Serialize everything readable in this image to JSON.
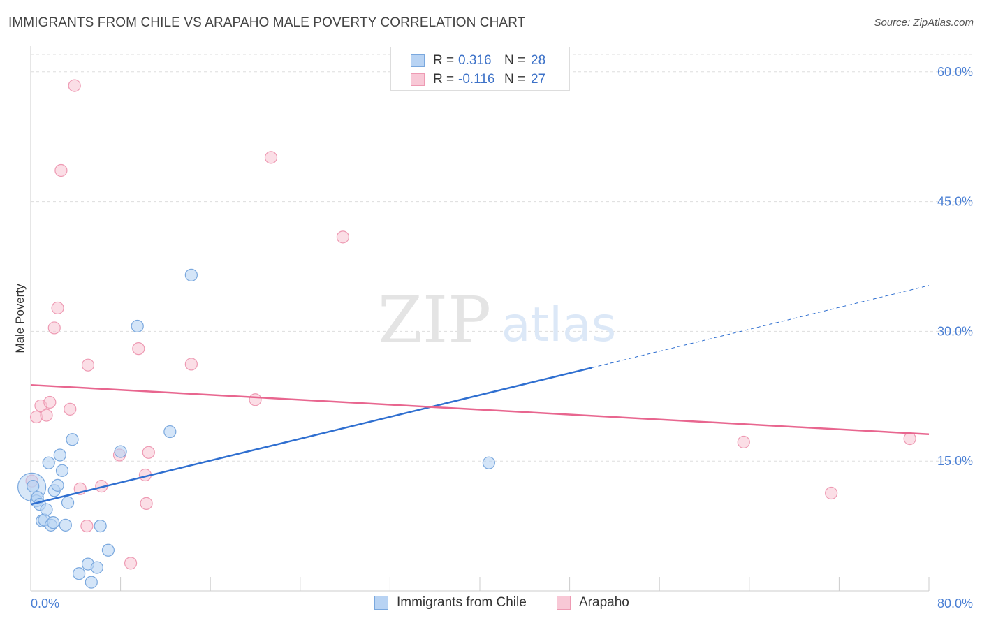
{
  "header": {
    "title": "IMMIGRANTS FROM CHILE VS ARAPAHO MALE POVERTY CORRELATION CHART",
    "source": "Source: ZipAtlas.com"
  },
  "watermark": {
    "zip": "ZIP",
    "atlas": "atlas"
  },
  "legend_top": {
    "rows": [
      {
        "r_label": "R =",
        "r_value": "0.316",
        "n_label": "N =",
        "n_value": "28"
      },
      {
        "r_label": "R =",
        "r_value": "-0.116",
        "n_label": "N =",
        "n_value": "27"
      }
    ]
  },
  "legend_bottom": {
    "items": [
      {
        "label": "Immigrants from Chile"
      },
      {
        "label": "Arapaho"
      }
    ]
  },
  "colors": {
    "chile_fill": "#b8d3f3",
    "chile_stroke": "#7aa8de",
    "chile_line": "#2f6fd0",
    "arapaho_fill": "#f8c8d6",
    "arapaho_stroke": "#ee9ab3",
    "arapaho_line": "#e8668f",
    "grid": "#dddddd",
    "tick_text": "#4a7fd4"
  },
  "chart_data": {
    "type": "scatter",
    "title": "IMMIGRANTS FROM CHILE VS ARAPAHO MALE POVERTY CORRELATION CHART",
    "xlabel": "",
    "ylabel": "Male Poverty",
    "xlim": [
      0,
      80
    ],
    "ylim": [
      0,
      62
    ],
    "x_tick_labels": [
      "0.0%",
      "80.0%"
    ],
    "y_ticks": [
      15,
      30,
      45,
      60
    ],
    "y_tick_labels": [
      "15.0%",
      "30.0%",
      "45.0%",
      "60.0%"
    ],
    "grid": true,
    "legend_position": "top-center",
    "series": [
      {
        "name": "Immigrants from Chile",
        "R": 0.316,
        "N": 28,
        "points": [
          [
            0.2,
            12.1
          ],
          [
            0.5,
            10.4
          ],
          [
            0.6,
            10.8
          ],
          [
            0.8,
            10.0
          ],
          [
            1.0,
            8.1
          ],
          [
            1.2,
            8.2
          ],
          [
            1.4,
            9.4
          ],
          [
            1.6,
            14.8
          ],
          [
            1.8,
            7.6
          ],
          [
            2.0,
            7.9
          ],
          [
            2.1,
            11.6
          ],
          [
            2.4,
            12.2
          ],
          [
            2.6,
            15.7
          ],
          [
            2.8,
            13.9
          ],
          [
            3.1,
            7.6
          ],
          [
            3.3,
            10.2
          ],
          [
            3.7,
            17.5
          ],
          [
            4.3,
            2.0
          ],
          [
            5.1,
            3.1
          ],
          [
            5.4,
            1.0
          ],
          [
            5.9,
            2.7
          ],
          [
            6.2,
            7.5
          ],
          [
            6.9,
            4.7
          ],
          [
            8.0,
            16.1
          ],
          [
            9.5,
            30.6
          ],
          [
            12.4,
            18.4
          ],
          [
            14.3,
            36.5
          ],
          [
            40.8,
            14.8
          ]
        ],
        "trend": {
          "x0": 0,
          "y0": 10.0,
          "x1": 50,
          "y1": 25.8,
          "dashed_to_x": 80,
          "dashed_to_y": 35.3
        }
      },
      {
        "name": "Arapaho",
        "R": -0.116,
        "N": 27,
        "points": [
          [
            0.1,
            12.7
          ],
          [
            0.5,
            20.1
          ],
          [
            0.9,
            21.4
          ],
          [
            1.4,
            20.3
          ],
          [
            1.7,
            21.8
          ],
          [
            2.1,
            30.4
          ],
          [
            2.4,
            32.7
          ],
          [
            2.7,
            48.6
          ],
          [
            3.5,
            21.0
          ],
          [
            3.9,
            58.4
          ],
          [
            4.4,
            11.8
          ],
          [
            5.0,
            7.5
          ],
          [
            5.1,
            26.1
          ],
          [
            6.3,
            12.1
          ],
          [
            7.9,
            15.7
          ],
          [
            8.9,
            3.2
          ],
          [
            9.6,
            28.0
          ],
          [
            10.2,
            13.4
          ],
          [
            10.3,
            10.1
          ],
          [
            10.5,
            16.0
          ],
          [
            14.3,
            26.2
          ],
          [
            20.0,
            22.1
          ],
          [
            21.4,
            50.1
          ],
          [
            27.8,
            40.9
          ],
          [
            63.5,
            17.2
          ],
          [
            71.3,
            11.3
          ],
          [
            78.3,
            17.6
          ]
        ],
        "trend": {
          "x0": 0,
          "y0": 23.8,
          "x1": 80,
          "y1": 18.1
        }
      }
    ]
  }
}
